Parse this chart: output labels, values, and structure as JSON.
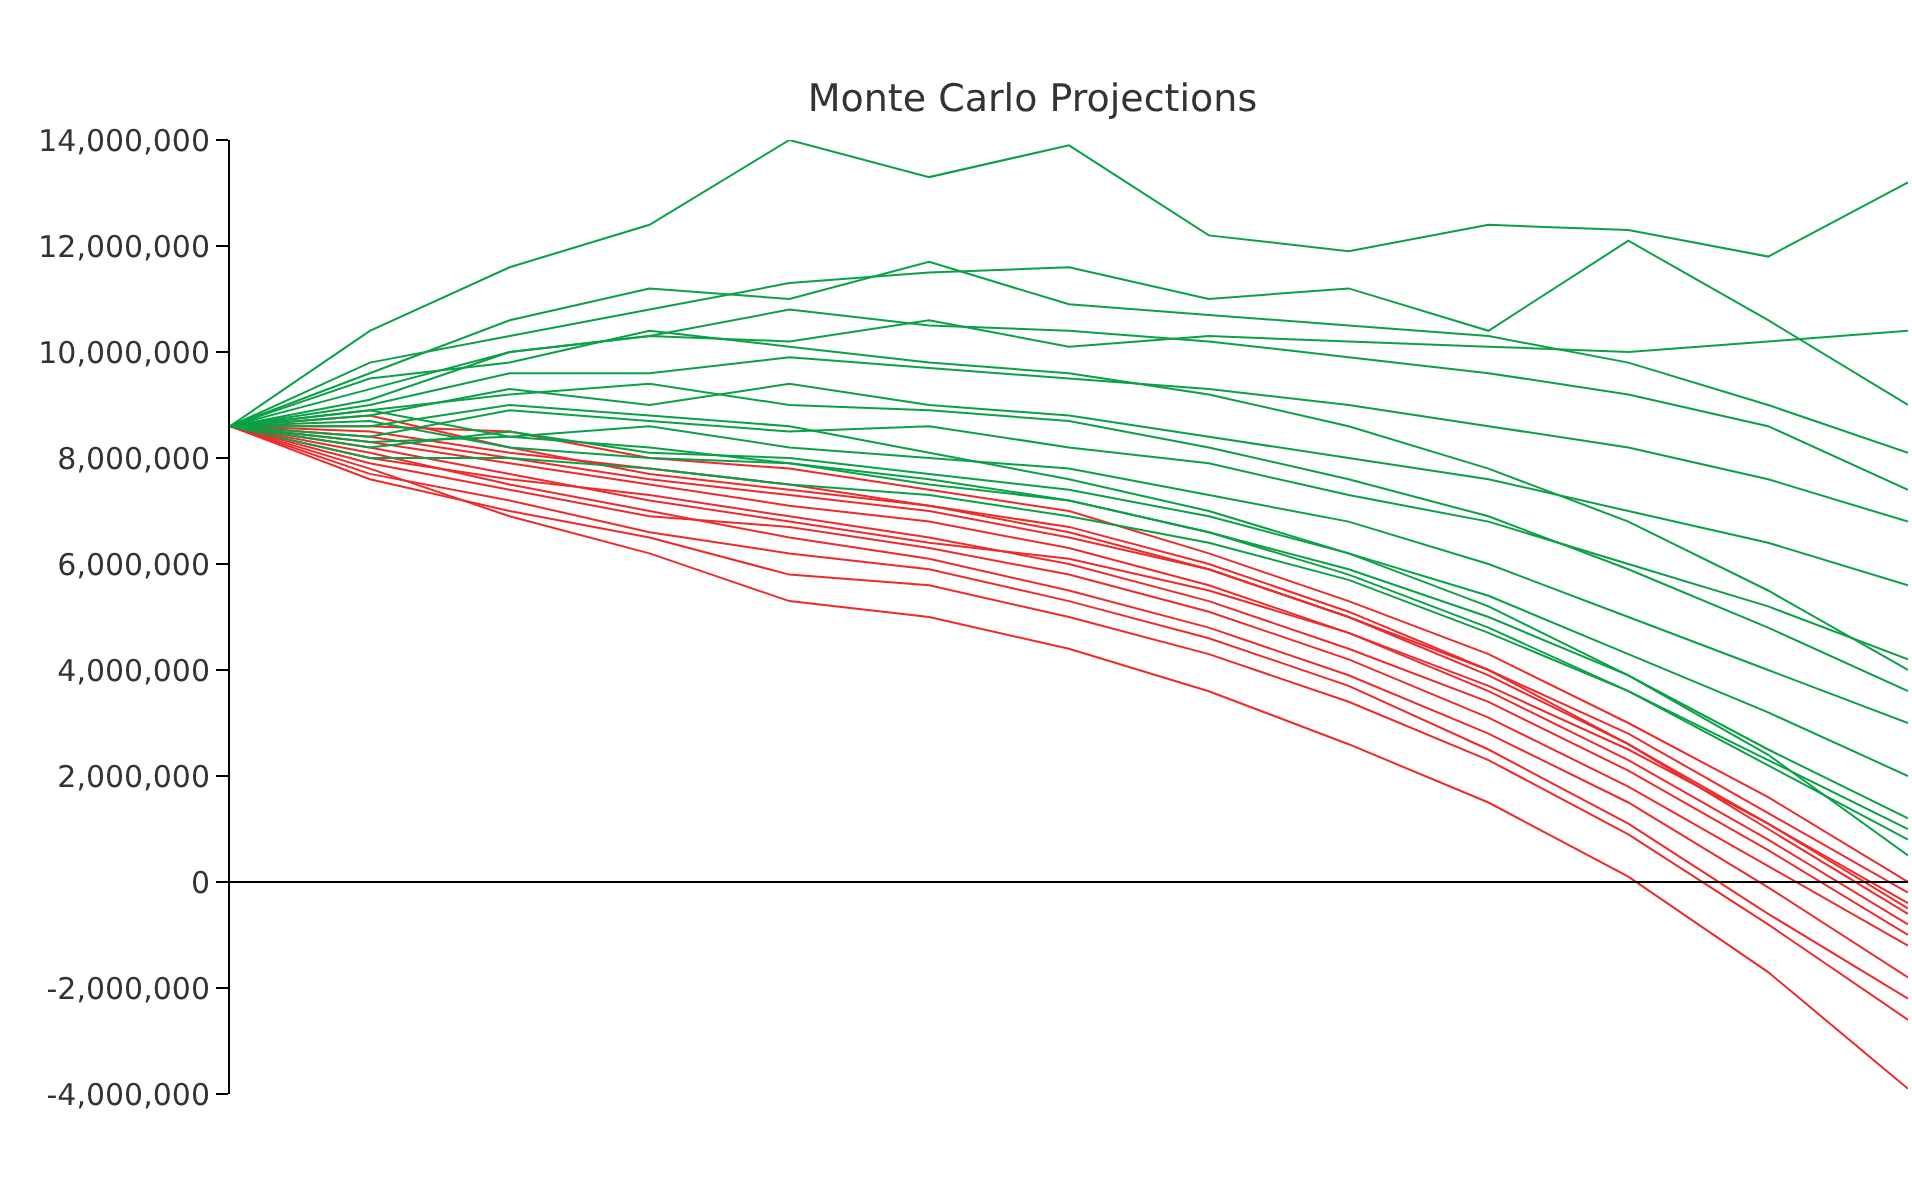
{
  "chart_data": {
    "type": "line",
    "title": "Monte Carlo Projections",
    "categories": [
      null,
      null,
      null,
      null,
      null,
      null,
      null,
      null,
      null,
      null,
      null,
      null,
      null
    ],
    "ylim": [
      -4000000.0,
      14000000.0
    ],
    "yticks": [
      {
        "value": -4000000.0,
        "label": "-4,000,000"
      },
      {
        "value": -2000000.0,
        "label": "-2,000,000"
      },
      {
        "value": 0,
        "label": "0"
      },
      {
        "value": 2000000.0,
        "label": "2,000,000"
      },
      {
        "value": 4000000.0,
        "label": "4,000,000"
      },
      {
        "value": 6000000.0,
        "label": "6,000,000"
      },
      {
        "value": 8000000.0,
        "label": "8,000,000"
      },
      {
        "value": 10000000.0,
        "label": "10,000,000"
      },
      {
        "value": 12000000.0,
        "label": "12,000,000"
      },
      {
        "value": 14000000.0,
        "label": "14,000,000"
      }
    ],
    "ref_lines": [
      {
        "axis": "y",
        "value": 0,
        "color": "#000000",
        "line_style": "solid"
      }
    ],
    "tick_labels": "y",
    "marker": "none",
    "line_style": "solid",
    "series": [
      {
        "color": "#ee2a2a",
        "values": [
          8600000.0,
          8200000.0,
          7700000.0,
          7200000.0,
          6800000.0,
          6400000.0,
          6100000.0,
          5500000.0,
          4700000.0,
          3700000.0,
          2500000.0,
          1100000.0,
          -400000.0
        ]
      },
      {
        "color": "#ee2a2a",
        "values": [
          8600000.0,
          7900000.0,
          7400000.0,
          6900000.0,
          6700000.0,
          6300000.0,
          5800000.0,
          5100000.0,
          4200000.0,
          3100000.0,
          1800000.0,
          300000.0,
          -1200000.0
        ]
      },
      {
        "color": "#ee2a2a",
        "values": [
          8600000.0,
          7600000.0,
          7000000.0,
          6500000.0,
          5800000.0,
          5600000.0,
          5000000.0,
          4300000.0,
          3400000.0,
          2300000.0,
          900000.0,
          -800000.0,
          -2600000.0
        ]
      },
      {
        "color": "#ee2a2a",
        "values": [
          8600000.0,
          7800000.0,
          6900000.0,
          6200000.0,
          5300000.0,
          5000000.0,
          4400000.0,
          3600000.0,
          2600000.0,
          1500000.0,
          100000.0,
          -1700000.0,
          -3900000.0
        ]
      },
      {
        "color": "#ee2a2a",
        "values": [
          8600000.0,
          8400000.0,
          8000000.0,
          7600000.0,
          7300000.0,
          7000000.0,
          6500000.0,
          5900000.0,
          5000000.0,
          4000000.0,
          2800000.0,
          1300000.0,
          -200000.0
        ]
      },
      {
        "color": "#ee2a2a",
        "values": [
          8600000.0,
          8600000.0,
          8500000.0,
          8000000.0,
          7800000.0,
          7400000.0,
          7000000.0,
          6200000.0,
          5300000.0,
          4300000.0,
          3000000.0,
          1600000.0,
          0.0
        ]
      },
      {
        "color": "#ee2a2a",
        "values": [
          8600000.0,
          8000000.0,
          7600000.0,
          7300000.0,
          6900000.0,
          6500000.0,
          6000000.0,
          5300000.0,
          4400000.0,
          3400000.0,
          2100000.0,
          600000.0,
          -1000000.0
        ]
      },
      {
        "color": "#ee2a2a",
        "values": [
          8600000.0,
          8100000.0,
          7500000.0,
          7000000.0,
          6500000.0,
          6100000.0,
          5500000.0,
          4800000.0,
          3900000.0,
          2800000.0,
          1500000.0,
          -100000.0,
          -1800000.0
        ]
      },
      {
        "color": "#ee2a2a",
        "values": [
          8600000.0,
          8300000.0,
          7900000.0,
          7500000.0,
          7100000.0,
          6800000.0,
          6300000.0,
          5600000.0,
          4700000.0,
          3600000.0,
          2300000.0,
          800000.0,
          -800000.0
        ]
      },
      {
        "color": "#ee2a2a",
        "values": [
          8600000.0,
          8800000.0,
          8200000.0,
          7700000.0,
          7400000.0,
          7100000.0,
          6700000.0,
          6000000.0,
          5100000.0,
          4000000.0,
          2600000.0,
          1000000.0,
          -600000.0
        ]
      },
      {
        "color": "#ee2a2a",
        "values": [
          8600000.0,
          7700000.0,
          7200000.0,
          6600000.0,
          6200000.0,
          5900000.0,
          5300000.0,
          4600000.0,
          3700000.0,
          2500000.0,
          1100000.0,
          -600000.0,
          -2200000.0
        ]
      },
      {
        "color": "#ee2a2a",
        "values": [
          8600000.0,
          8500000.0,
          8100000.0,
          7800000.0,
          7500000.0,
          7100000.0,
          6600000.0,
          5900000.0,
          5000000.0,
          3900000.0,
          2600000.0,
          1100000.0,
          -500000.0
        ]
      },
      {
        "color": "#0aa146",
        "values": [
          8600000.0,
          10400000.0,
          11600000.0,
          12400000.0,
          14000000.0,
          13300000.0,
          13900000.0,
          12200000.0,
          11900000.0,
          12400000.0,
          12300000.0,
          11800000.0,
          13200000.0
        ]
      },
      {
        "color": "#0aa146",
        "values": [
          8600000.0,
          9800000.0,
          10300000.0,
          10800000.0,
          11300000.0,
          11500000.0,
          11600000.0,
          11000000.0,
          11200000.0,
          10400000.0,
          12100000.0,
          10600000.0,
          9000000.0
        ]
      },
      {
        "color": "#0aa146",
        "values": [
          8600000.0,
          9300000.0,
          10000000.0,
          10300000.0,
          10200000.0,
          10600000.0,
          10100000.0,
          10300000.0,
          10200000.0,
          10100000.0,
          10000000.0,
          10200000.0,
          10400000.0
        ]
      },
      {
        "color": "#0aa146",
        "values": [
          8600000.0,
          9000000.0,
          9600000.0,
          9600000.0,
          9900000.0,
          9700000.0,
          9500000.0,
          9300000.0,
          9000000.0,
          8600000.0,
          8200000.0,
          7600000.0,
          6800000.0
        ]
      },
      {
        "color": "#0aa146",
        "values": [
          8600000.0,
          8800000.0,
          9300000.0,
          9000000.0,
          9400000.0,
          9000000.0,
          8800000.0,
          8400000.0,
          8000000.0,
          7600000.0,
          7000000.0,
          6400000.0,
          5600000.0
        ]
      },
      {
        "color": "#0aa146",
        "values": [
          8600000.0,
          8400000.0,
          8900000.0,
          8700000.0,
          8500000.0,
          8600000.0,
          8200000.0,
          7900000.0,
          7300000.0,
          6800000.0,
          6000000.0,
          5200000.0,
          4200000.0
        ]
      },
      {
        "color": "#0aa146",
        "values": [
          8600000.0,
          8900000.0,
          8400000.0,
          8600000.0,
          8200000.0,
          8000000.0,
          7800000.0,
          7300000.0,
          6800000.0,
          6000000.0,
          5000000.0,
          4000000.0,
          3000000.0
        ]
      },
      {
        "color": "#0aa146",
        "values": [
          8600000.0,
          8200000.0,
          8500000.0,
          8100000.0,
          8000000.0,
          7700000.0,
          7400000.0,
          6900000.0,
          6200000.0,
          5400000.0,
          4300000.0,
          3200000.0,
          2000000.0
        ]
      },
      {
        "color": "#0aa146",
        "values": [
          8600000.0,
          8000000.0,
          8000000.0,
          7800000.0,
          7500000.0,
          7300000.0,
          6900000.0,
          6400000.0,
          5700000.0,
          4700000.0,
          3600000.0,
          2200000.0,
          800000.0
        ]
      },
      {
        "color": "#0aa146",
        "values": [
          8600000.0,
          8600000.0,
          9000000.0,
          8800000.0,
          8600000.0,
          8100000.0,
          7600000.0,
          7000000.0,
          6200000.0,
          5200000.0,
          3900000.0,
          2400000.0,
          500000.0
        ]
      },
      {
        "color": "#0aa146",
        "values": [
          8600000.0,
          9500000.0,
          9800000.0,
          10400000.0,
          10100000.0,
          9800000.0,
          9600000.0,
          9200000.0,
          8600000.0,
          7800000.0,
          6800000.0,
          5500000.0,
          4000000.0
        ]
      },
      {
        "color": "#0aa146",
        "values": [
          8600000.0,
          8700000.0,
          8200000.0,
          8000000.0,
          7900000.0,
          7500000.0,
          7200000.0,
          6600000.0,
          5800000.0,
          4800000.0,
          3600000.0,
          2300000.0,
          1000000.0
        ]
      },
      {
        "color": "#0aa146",
        "values": [
          8600000.0,
          9100000.0,
          10000000.0,
          10300000.0,
          10800000.0,
          10500000.0,
          10400000.0,
          10200000.0,
          9900000.0,
          9600000.0,
          9200000.0,
          8600000.0,
          7400000.0
        ]
      },
      {
        "color": "#0aa146",
        "values": [
          8600000.0,
          8900000.0,
          9200000.0,
          9400000.0,
          9000000.0,
          8900000.0,
          8700000.0,
          8200000.0,
          7600000.0,
          6900000.0,
          5900000.0,
          4800000.0,
          3600000.0
        ]
      },
      {
        "color": "#0aa146",
        "values": [
          8600000.0,
          8300000.0,
          8400000.0,
          8200000.0,
          7900000.0,
          7600000.0,
          7200000.0,
          6600000.0,
          5900000.0,
          5000000.0,
          3900000.0,
          2500000.0,
          1200000.0
        ]
      },
      {
        "color": "#0aa146",
        "values": [
          8600000.0,
          9600000.0,
          10600000.0,
          11200000.0,
          11000000.0,
          11700000.0,
          10900000.0,
          10700000.0,
          10500000.0,
          10300000.0,
          9800000.0,
          9000000.0,
          8100000.0
        ]
      }
    ]
  }
}
